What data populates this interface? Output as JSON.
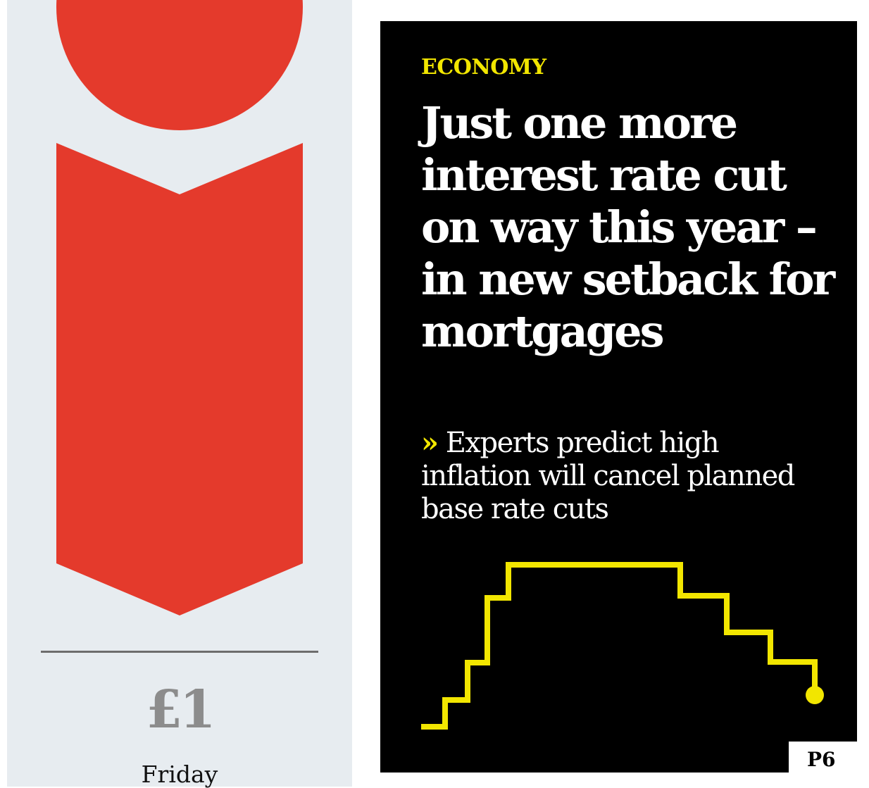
{
  "masthead": {
    "brand_color": "#e43a2c",
    "price": "£1",
    "day": "Friday"
  },
  "story": {
    "section": "ECONOMY",
    "headline": "Just one more interest rate cut on way this year – in new setback for mortgages",
    "standfirst_marker": "»",
    "standfirst": "Experts predict high inflation will cancel planned base rate cuts",
    "page_ref": "P6",
    "accent_color": "#f2e600"
  }
}
